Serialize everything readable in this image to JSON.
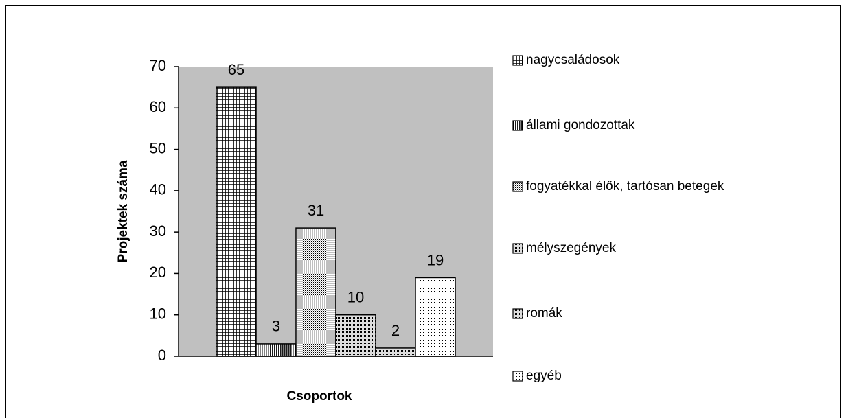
{
  "chart_data": {
    "type": "bar",
    "y_label": "Projektek száma",
    "x_label": "Csoportok",
    "ylim": [
      0,
      70
    ],
    "yticks": [
      0,
      10,
      20,
      30,
      40,
      50,
      60,
      70
    ],
    "plot_color": "#c0c0c0",
    "series": [
      {
        "name": "nagycsaládosok",
        "values": [
          65
        ],
        "color": "#6e6e6e",
        "pattern": "grid"
      },
      {
        "name": "állami gondozottak",
        "values": [
          3
        ],
        "color": "#4a4a4a",
        "pattern": "vertical"
      },
      {
        "name": "fogyatékkal élők, tartósan betegek",
        "values": [
          31
        ],
        "color": "#9a9a9a",
        "pattern": "dots"
      },
      {
        "name": "mélyszegények",
        "values": [
          10
        ],
        "color": "#7a7a7a",
        "pattern": "dense"
      },
      {
        "name": "romák",
        "values": [
          2
        ],
        "color": "#6a6a6a",
        "pattern": "dense"
      },
      {
        "name": "egyéb",
        "values": [
          19
        ],
        "color": "#a8a8a8",
        "pattern": "sparse"
      }
    ]
  }
}
